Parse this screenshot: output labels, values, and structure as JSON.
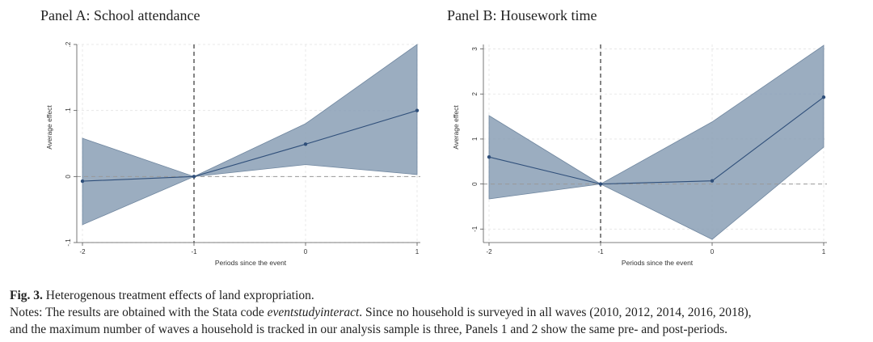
{
  "chart_data": [
    {
      "type": "line",
      "title": "Panel A: School attendance",
      "xlabel": "Periods since the event",
      "ylabel": "Average effect",
      "x": [
        -2,
        -1,
        0,
        1
      ],
      "x_ticks": [
        "-2",
        "-1",
        "0",
        "1"
      ],
      "y_ticks": [
        -0.1,
        0,
        0.1,
        0.2
      ],
      "y_tick_labels": [
        "-.1",
        "0",
        ".1",
        ".2"
      ],
      "ylim": [
        -0.1,
        0.2
      ],
      "xlim": [
        -2,
        1
      ],
      "event_line_x": -1,
      "zero_line": true,
      "series": [
        {
          "values": [
            -0.007,
            0,
            0.049,
            0.1
          ],
          "ci_lower": [
            -0.073,
            0,
            0.018,
            0.003
          ],
          "ci_upper": [
            0.058,
            0,
            0.08,
            0.2
          ]
        }
      ],
      "colors": {
        "band": "#8a9fb5",
        "line": "#2f4f7a",
        "event_line": "#333333",
        "zero_line": "#999999"
      }
    },
    {
      "type": "line",
      "title": "Panel B: Housework time",
      "xlabel": "Periods since the event",
      "ylabel": "Average effect",
      "x": [
        -2,
        -1,
        0,
        1
      ],
      "x_ticks": [
        "-2",
        "-1",
        "0",
        "1"
      ],
      "y_ticks": [
        -1,
        0,
        1,
        2,
        3
      ],
      "y_tick_labels": [
        "-1",
        "0",
        "1",
        "2",
        "3"
      ],
      "ylim": [
        -1.3,
        3.1
      ],
      "xlim": [
        -2,
        1
      ],
      "event_line_x": -1,
      "zero_line": true,
      "series": [
        {
          "values": [
            0.6,
            0,
            0.07,
            1.93
          ],
          "ci_lower": [
            -0.33,
            0,
            -1.23,
            0.82
          ],
          "ci_upper": [
            1.52,
            0,
            1.38,
            3.08
          ]
        }
      ],
      "colors": {
        "band": "#8a9fb5",
        "line": "#2f4f7a",
        "event_line": "#333333",
        "zero_line": "#999999"
      }
    }
  ],
  "caption": {
    "label": "Fig. 3.",
    "title": "Heterogenous treatment effects of land expropriation.",
    "notes_prefix": "Notes: The results are obtained with the Stata code ",
    "notes_code": "eventstudyinteract",
    "notes_rest": ". Since no household is surveyed in all waves (2010, 2012, 2014, 2016, 2018),",
    "notes_line2": "and the maximum number of waves a household is tracked in our analysis sample is three, Panels 1 and 2 show the same pre- and post-periods."
  }
}
